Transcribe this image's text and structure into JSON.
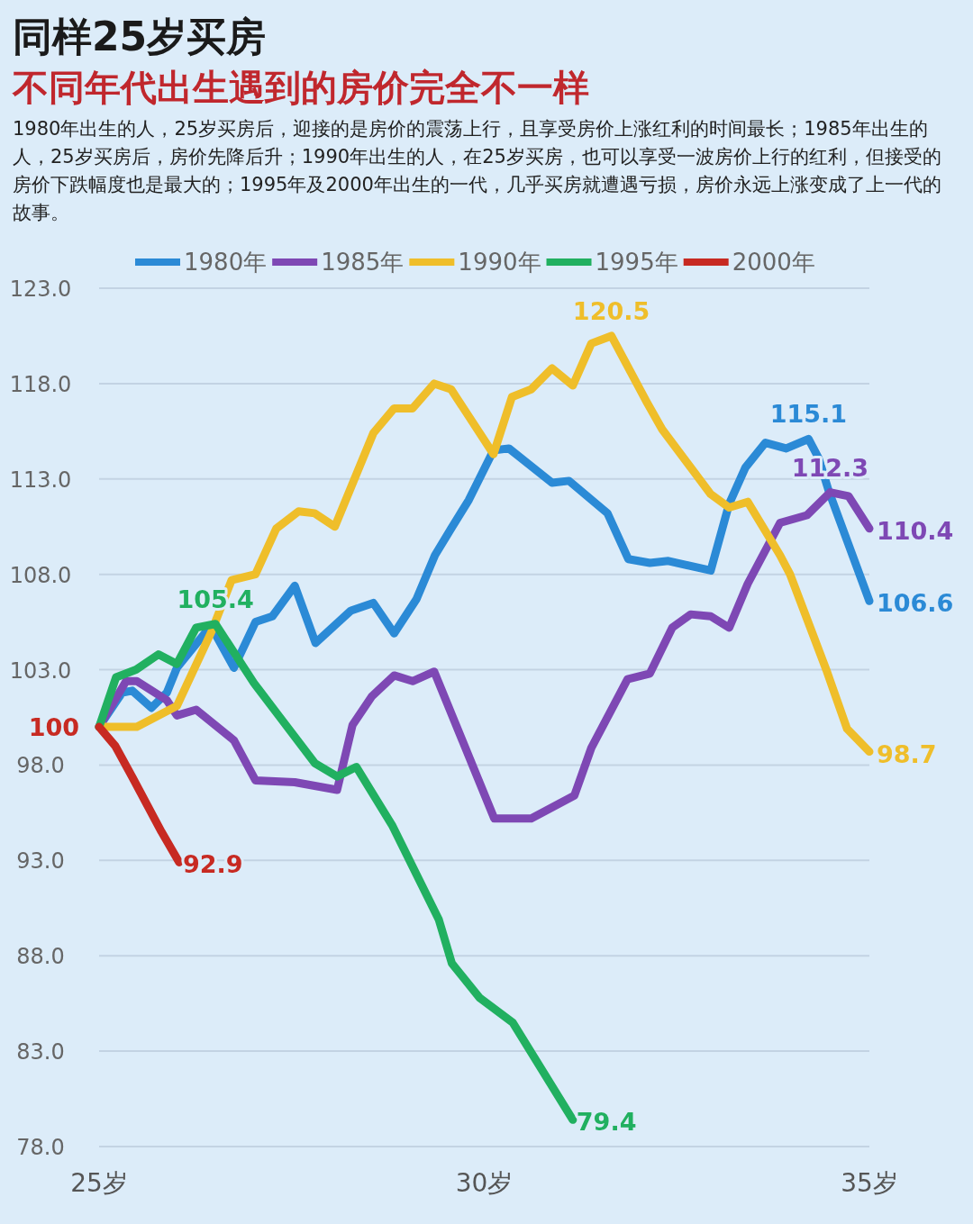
{
  "chart_data": {
    "type": "line",
    "title": "同样25岁买房",
    "subtitle": "不同年代出生遇到的房价完全不一样",
    "annotations": [
      "1980年出生的人，25岁买房后，迎接的是房价的震荡上行，且享受房价上涨红利的时间最长；1985年出生的人，25岁买房后，房价先降后升；1990年出生的人，在25岁买房，也可以享受一波房价上行的红利，但接受的房价下跌幅度也是最大的；1995年及2000年出生的一代，几乎买房就遭遇亏损，房价永远上涨变成了上一代的故事。",
      {
        "text": "100",
        "x": 25,
        "y": 100
      },
      {
        "text": "105.4",
        "x": 26.51,
        "y": 105.4
      },
      {
        "text": "120.5",
        "x": 31.65,
        "y": 120.5
      },
      {
        "text": "115.1",
        "x": 34.21,
        "y": 115.1
      },
      {
        "text": "112.3",
        "x": 34.49,
        "y": 112.3
      },
      {
        "text": "110.4",
        "x": 35,
        "y": 110.4
      },
      {
        "text": "106.6",
        "x": 35,
        "y": 106.6
      },
      {
        "text": "98.7",
        "x": 35,
        "y": 98.7
      },
      {
        "text": "92.9",
        "x": 26.04,
        "y": 92.9
      },
      {
        "text": "79.4",
        "x": 31.15,
        "y": 79.4
      }
    ],
    "xlim": [
      25,
      35
    ],
    "xticks": [
      {
        "value": 25,
        "label": "25岁"
      },
      {
        "value": 30,
        "label": "30岁"
      },
      {
        "value": 35,
        "label": "35岁"
      }
    ],
    "ylim": [
      78,
      123
    ],
    "yticks": [
      {
        "value": 78,
        "label": "78.0"
      },
      {
        "value": 83,
        "label": "83.0"
      },
      {
        "value": 88,
        "label": "88.0"
      },
      {
        "value": 93,
        "label": "93.0"
      },
      {
        "value": 98,
        "label": "98.0"
      },
      {
        "value": 103,
        "label": "103.0"
      },
      {
        "value": 108,
        "label": "108.0"
      },
      {
        "value": 113,
        "label": "113.0"
      },
      {
        "value": 118,
        "label": "118.0"
      },
      {
        "value": 123,
        "label": "123.0"
      }
    ],
    "grid": "y",
    "legend": "top",
    "marker": "none",
    "line_style": "solid",
    "series": [
      {
        "name": "1980年",
        "color": "#2b8ad6",
        "x": [
          25,
          25.3,
          25.43,
          25.68,
          25.88,
          26.01,
          26.45,
          26.75,
          27.03,
          27.25,
          27.54,
          27.81,
          28.27,
          28.56,
          28.83,
          29.12,
          29.36,
          29.57,
          29.8,
          30.12,
          30.32,
          30.88,
          31.1,
          31.6,
          31.87,
          32.15,
          32.39,
          32.94,
          33.18,
          33.39,
          33.65,
          33.92,
          34.21,
          34.34,
          34.47,
          35
        ],
        "values": [
          100,
          101.8,
          101.9,
          101.0,
          101.8,
          103.1,
          105.3,
          103.1,
          105.5,
          105.8,
          107.4,
          104.4,
          106.1,
          106.5,
          104.9,
          106.7,
          109.0,
          110.4,
          111.9,
          114.5,
          114.6,
          112.8,
          112.9,
          111.2,
          108.8,
          108.6,
          108.7,
          108.2,
          111.7,
          113.6,
          114.9,
          114.6,
          115.1,
          114.1,
          112.4,
          106.6
        ]
      },
      {
        "name": "1985年",
        "color": "#7e48b4",
        "x": [
          25,
          25.35,
          25.49,
          25.88,
          26.01,
          26.26,
          26.75,
          27.03,
          27.54,
          28.09,
          28.29,
          28.54,
          28.83,
          29.07,
          29.35,
          30.13,
          30.61,
          31.17,
          31.39,
          31.86,
          32.15,
          32.44,
          32.68,
          32.94,
          33.18,
          33.42,
          33.84,
          34.19,
          34.49,
          34.73,
          35
        ],
        "values": [
          100,
          102.4,
          102.4,
          101.4,
          100.6,
          100.9,
          99.3,
          97.2,
          97.1,
          96.7,
          100.1,
          101.6,
          102.7,
          102.4,
          102.9,
          95.2,
          95.2,
          96.4,
          98.9,
          102.5,
          102.8,
          105.2,
          105.9,
          105.8,
          105.2,
          107.5,
          110.7,
          111.1,
          112.3,
          112.1,
          110.4
        ]
      },
      {
        "name": "1990年",
        "color": "#efbe2a",
        "x": [
          25,
          25.49,
          26.01,
          26.46,
          26.72,
          27.03,
          27.3,
          27.59,
          27.8,
          28.06,
          28.56,
          28.83,
          29.07,
          29.35,
          29.57,
          30.12,
          30.36,
          30.61,
          30.88,
          31.15,
          31.39,
          31.65,
          32.1,
          32.31,
          32.94,
          33.18,
          33.42,
          33.84,
          33.97,
          34.44,
          34.71,
          35
        ],
        "values": [
          100,
          100.0,
          101.1,
          105.0,
          107.7,
          108.0,
          110.4,
          111.3,
          111.2,
          110.5,
          115.4,
          116.7,
          116.7,
          118.0,
          117.7,
          114.3,
          117.3,
          117.7,
          118.8,
          117.9,
          120.1,
          120.5,
          117.1,
          115.6,
          112.2,
          111.5,
          111.8,
          109.0,
          108.0,
          103.0,
          99.9,
          98.7
        ]
      },
      {
        "name": "1995年",
        "color": "#21b060",
        "x": [
          25,
          25.22,
          25.48,
          25.77,
          26.01,
          26.26,
          26.51,
          27.01,
          27.33,
          27.8,
          28.09,
          28.34,
          28.81,
          29.41,
          29.58,
          29.94,
          30.37,
          31.15
        ],
        "values": [
          100,
          102.6,
          103.0,
          103.8,
          103.3,
          105.2,
          105.4,
          102.3,
          100.6,
          98.1,
          97.4,
          97.9,
          94.8,
          89.9,
          87.6,
          85.8,
          84.5,
          79.4
        ]
      },
      {
        "name": "2000年",
        "color": "#c72a22",
        "x": [
          25,
          25.21,
          25.44,
          25.81,
          26.04
        ],
        "values": [
          100,
          99.0,
          97.3,
          94.5,
          92.9
        ]
      }
    ]
  }
}
